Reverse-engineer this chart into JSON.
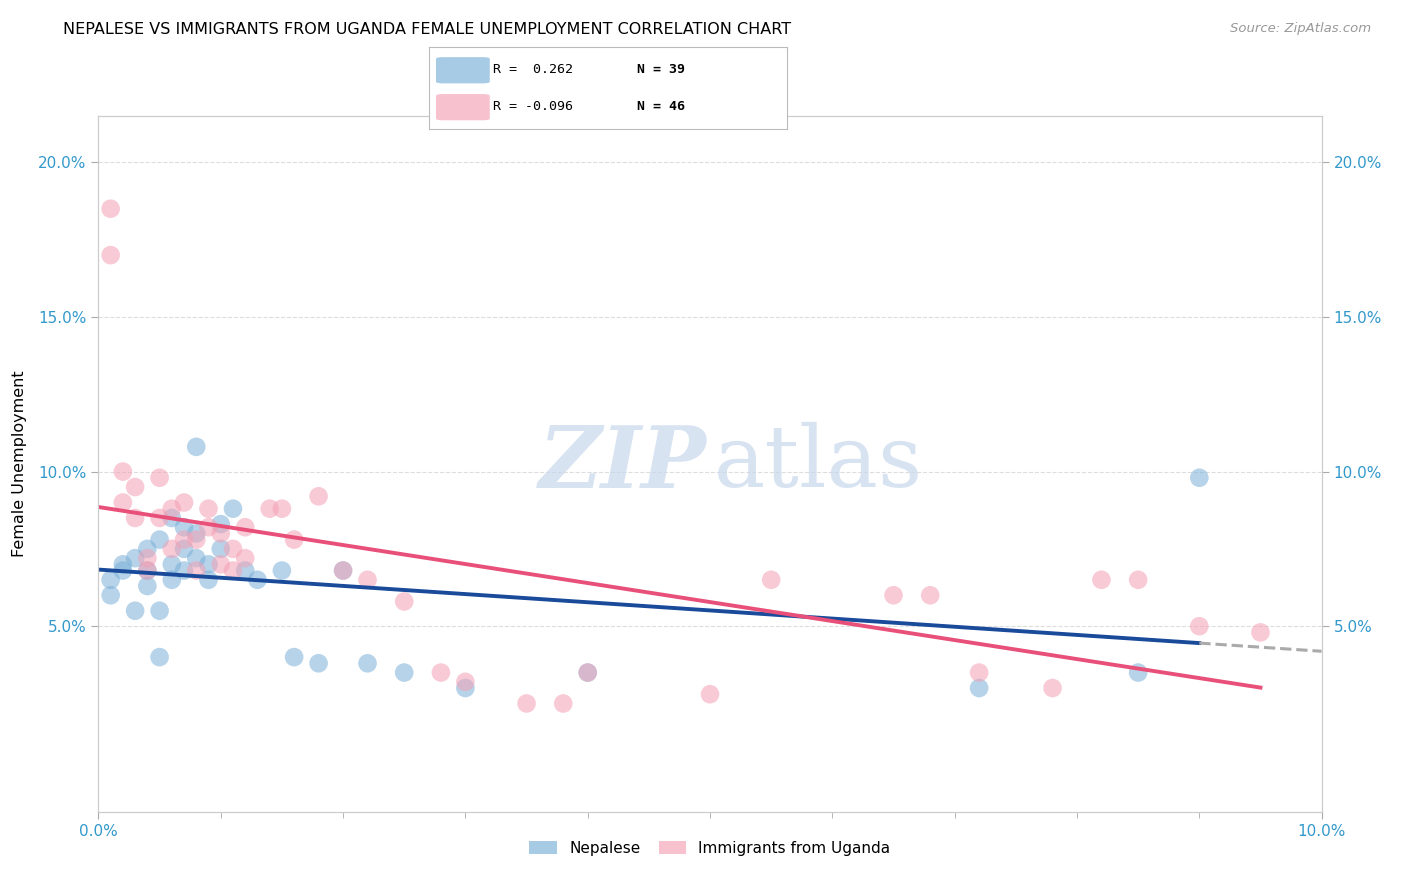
{
  "title": "NEPALESE VS IMMIGRANTS FROM UGANDA FEMALE UNEMPLOYMENT CORRELATION CHART",
  "source": "Source: ZipAtlas.com",
  "ylabel": "Female Unemployment",
  "xlim": [
    0.0,
    0.1
  ],
  "ylim": [
    -0.01,
    0.215
  ],
  "xtick_left": 0.0,
  "xtick_right": 0.1,
  "xtick_left_label": "0.0%",
  "xtick_right_label": "10.0%",
  "yticks": [
    0.05,
    0.1,
    0.15,
    0.2
  ],
  "ytick_labels": [
    "5.0%",
    "10.0%",
    "15.0%",
    "20.0%"
  ],
  "minor_xticks": [
    0.01,
    0.02,
    0.03,
    0.04,
    0.05,
    0.06,
    0.07,
    0.08,
    0.09
  ],
  "R1": 0.262,
  "N1": 39,
  "R2": -0.096,
  "N2": 46,
  "blue_scatter": "#7ab0d8",
  "pink_scatter": "#f4a0b5",
  "blue_line": "#1a4a9a",
  "pink_line": "#e8507a",
  "grey_dash": "#aaaaaa",
  "tick_color": "#aaaaaa",
  "grid_color": "#dddddd",
  "axis_color": "#cccccc",
  "label_color": "#3399cc",
  "legend1_label": "Nepalese",
  "legend2_label": "Immigrants from Uganda",
  "nepalese_x": [
    0.001,
    0.001,
    0.002,
    0.002,
    0.003,
    0.003,
    0.004,
    0.004,
    0.004,
    0.005,
    0.005,
    0.005,
    0.006,
    0.006,
    0.006,
    0.007,
    0.007,
    0.007,
    0.008,
    0.008,
    0.008,
    0.009,
    0.009,
    0.01,
    0.01,
    0.011,
    0.012,
    0.013,
    0.015,
    0.016,
    0.018,
    0.02,
    0.022,
    0.025,
    0.03,
    0.04,
    0.072,
    0.085,
    0.09
  ],
  "nepalese_y": [
    0.065,
    0.06,
    0.07,
    0.068,
    0.055,
    0.072,
    0.075,
    0.063,
    0.068,
    0.04,
    0.055,
    0.078,
    0.065,
    0.07,
    0.085,
    0.068,
    0.075,
    0.082,
    0.08,
    0.072,
    0.108,
    0.065,
    0.07,
    0.075,
    0.083,
    0.088,
    0.068,
    0.065,
    0.068,
    0.04,
    0.038,
    0.068,
    0.038,
    0.035,
    0.03,
    0.035,
    0.03,
    0.035,
    0.098
  ],
  "uganda_x": [
    0.001,
    0.001,
    0.002,
    0.002,
    0.003,
    0.003,
    0.004,
    0.004,
    0.005,
    0.005,
    0.006,
    0.006,
    0.007,
    0.007,
    0.008,
    0.008,
    0.009,
    0.009,
    0.01,
    0.01,
    0.011,
    0.011,
    0.012,
    0.012,
    0.014,
    0.015,
    0.016,
    0.018,
    0.02,
    0.022,
    0.025,
    0.028,
    0.03,
    0.035,
    0.038,
    0.04,
    0.05,
    0.055,
    0.065,
    0.068,
    0.072,
    0.078,
    0.082,
    0.085,
    0.09,
    0.095
  ],
  "uganda_y": [
    0.185,
    0.17,
    0.1,
    0.09,
    0.095,
    0.085,
    0.072,
    0.068,
    0.098,
    0.085,
    0.075,
    0.088,
    0.09,
    0.078,
    0.078,
    0.068,
    0.082,
    0.088,
    0.07,
    0.08,
    0.068,
    0.075,
    0.082,
    0.072,
    0.088,
    0.088,
    0.078,
    0.092,
    0.068,
    0.065,
    0.058,
    0.035,
    0.032,
    0.025,
    0.025,
    0.035,
    0.028,
    0.065,
    0.06,
    0.06,
    0.035,
    0.03,
    0.065,
    0.065,
    0.05,
    0.048
  ]
}
